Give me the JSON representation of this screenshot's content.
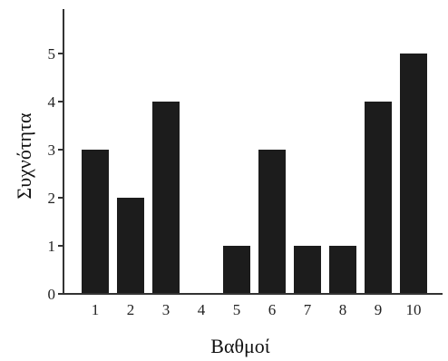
{
  "chart_data": {
    "type": "bar",
    "title": "",
    "xlabel": "Βαθμοί",
    "ylabel": "Συχνότητα",
    "categories": [
      "1",
      "2",
      "3",
      "4",
      "5",
      "6",
      "7",
      "8",
      "9",
      "10"
    ],
    "values": [
      3,
      2,
      4,
      0,
      1,
      3,
      1,
      1,
      4,
      5
    ],
    "ylim": [
      0,
      5.8
    ],
    "yticks": [
      "0",
      "1",
      "2",
      "3",
      "4",
      "5"
    ],
    "grid": false,
    "legend": "none",
    "colors": {
      "bar": "#1c1c1c",
      "axis": "#333333",
      "text": "#222222"
    }
  }
}
